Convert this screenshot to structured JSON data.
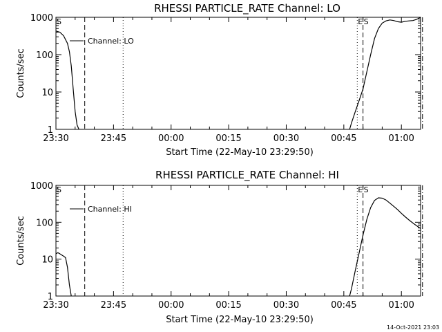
{
  "chart_data": [
    {
      "type": "line",
      "title": "RHESSI PARTICLE_RATE Channel: LO",
      "xlabel": "Start Time (22-May-10 23:29:50)",
      "ylabel": "Counts/sec",
      "y_scale": "log",
      "ylim": [
        1,
        1000
      ],
      "xlim_minutes_from_2330": [
        0,
        95
      ],
      "x_ticks": [
        "23:30",
        "23:45",
        "00:00",
        "00:15",
        "00:30",
        "00:45",
        "01:00"
      ],
      "y_ticks": [
        "1",
        "10",
        "100",
        "1000"
      ],
      "grid": false,
      "legend_position": "top-left",
      "series": [
        {
          "name": "Channel: LO",
          "t": [
            "23:30",
            "23:31",
            "23:32",
            "23:33",
            "23:33.5",
            "23:34",
            "23:34.5",
            "23:35",
            "23:35.5",
            "23:36",
            "00:46.5",
            "00:47",
            "00:48",
            "00:49",
            "00:50",
            "00:51",
            "00:52",
            "00:53",
            "00:54",
            "00:55",
            "00:56",
            "00:57",
            "00:58",
            "00:59",
            "01:00",
            "01:01",
            "01:02",
            "01:03",
            "01:04",
            "01:05"
          ],
          "values": [
            430,
            400,
            320,
            200,
            120,
            50,
            12,
            3,
            1.3,
            1,
            1,
            1.5,
            3,
            6,
            12,
            35,
            100,
            270,
            500,
            700,
            800,
            850,
            820,
            760,
            740,
            780,
            800,
            820,
            880,
            1000
          ]
        }
      ],
      "markers": [
        {
          "label": "S",
          "t": "23:30",
          "style": "dash-dot"
        },
        {
          "label": "",
          "t": "23:37.5",
          "style": "dashed"
        },
        {
          "label": "",
          "t": "23:47.5",
          "style": "dotted"
        },
        {
          "label": "E",
          "t": "00:48.5",
          "style": "dotted"
        },
        {
          "label": "S",
          "t": "00:50",
          "style": "dashed"
        },
        {
          "label": "",
          "t": "01:05.5",
          "style": "dash-dot"
        }
      ]
    },
    {
      "type": "line",
      "title": "RHESSI PARTICLE_RATE Channel: HI",
      "xlabel": "Start Time (22-May-10 23:29:50)",
      "ylabel": "Counts/sec",
      "y_scale": "log",
      "ylim": [
        1,
        1000
      ],
      "xlim_minutes_from_2330": [
        0,
        95
      ],
      "x_ticks": [
        "23:30",
        "23:45",
        "00:00",
        "00:15",
        "00:30",
        "00:45",
        "01:00"
      ],
      "y_ticks": [
        "1",
        "10",
        "100",
        "1000"
      ],
      "grid": false,
      "legend_position": "top-left",
      "series": [
        {
          "name": "Channel: HI",
          "t": [
            "23:30",
            "23:30.5",
            "23:31",
            "23:31.5",
            "23:32",
            "23:32.5",
            "23:33",
            "23:33.5",
            "23:34",
            "00:46.5",
            "00:47",
            "00:48",
            "00:49",
            "00:50",
            "00:51",
            "00:52",
            "00:53",
            "00:54",
            "00:55",
            "00:56",
            "00:57",
            "00:58",
            "00:59",
            "01:00",
            "01:01",
            "01:02",
            "01:03",
            "01:04",
            "01:05",
            "01:05.5"
          ],
          "values": [
            14,
            15,
            14,
            13,
            12,
            11,
            6,
            2,
            1,
            1,
            1.6,
            5,
            15,
            45,
            120,
            250,
            390,
            460,
            450,
            400,
            330,
            270,
            220,
            175,
            140,
            115,
            95,
            80,
            68,
            65
          ]
        }
      ],
      "markers": [
        {
          "label": "S",
          "t": "23:30",
          "style": "dash-dot"
        },
        {
          "label": "",
          "t": "23:37.5",
          "style": "dashed"
        },
        {
          "label": "",
          "t": "23:47.5",
          "style": "dotted"
        },
        {
          "label": "E",
          "t": "00:48.5",
          "style": "dotted"
        },
        {
          "label": "S",
          "t": "00:50",
          "style": "dashed"
        },
        {
          "label": "",
          "t": "01:05.5",
          "style": "dash-dot"
        }
      ]
    }
  ],
  "footer_date": "14-Oct-2021 23:03"
}
